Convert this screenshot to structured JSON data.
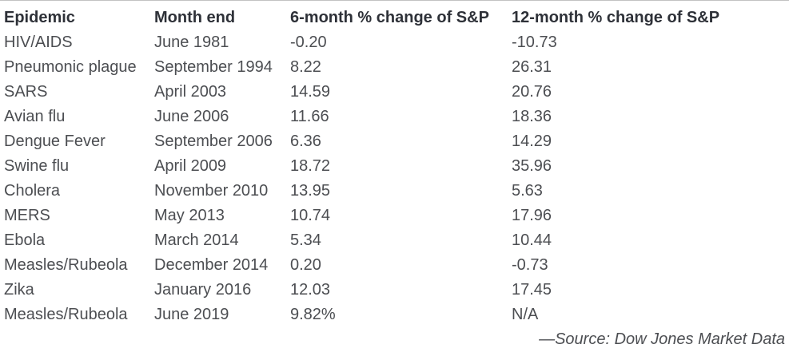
{
  "chart_data": {
    "type": "table",
    "columns": [
      "Epidemic",
      "Month end",
      "6-month % change of S&P",
      "12-month % change of S&P"
    ],
    "column_keys": [
      "epidemic",
      "month-end",
      "six-month-change",
      "twelve-month-change"
    ],
    "rows": [
      [
        "HIV/AIDS",
        "June 1981",
        "-0.20",
        "-10.73"
      ],
      [
        "Pneumonic plague",
        "September 1994",
        "8.22",
        "26.31"
      ],
      [
        "SARS",
        "April 2003",
        "14.59",
        "20.76"
      ],
      [
        "Avian flu",
        "June 2006",
        "11.66",
        "18.36"
      ],
      [
        "Dengue Fever",
        "September 2006",
        "6.36",
        "14.29"
      ],
      [
        "Swine flu",
        "April 2009",
        "18.72",
        "35.96"
      ],
      [
        "Cholera",
        "November 2010",
        "13.95",
        "5.63"
      ],
      [
        "MERS",
        "May 2013",
        "10.74",
        "17.96"
      ],
      [
        "Ebola",
        "March 2014",
        "5.34",
        "10.44"
      ],
      [
        "Measles/Rubeola",
        "December 2014",
        "0.20",
        "-0.73"
      ],
      [
        "Zika",
        "January 2016",
        "12.03",
        "17.45"
      ],
      [
        "Measles/Rubeola",
        "June 2019",
        "9.82%",
        "N/A"
      ]
    ],
    "source": "—Source: Dow Jones Market Data",
    "legend_position": "none",
    "grid": "off"
  },
  "colors": {
    "header_text": "#2e3138",
    "body_text": "#4c4e52",
    "top_border": "#c2c2c2",
    "background": "#ffffff"
  }
}
